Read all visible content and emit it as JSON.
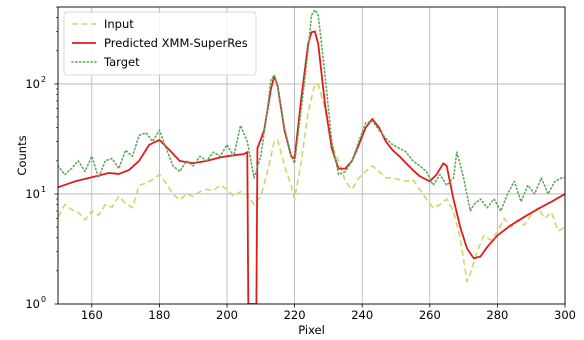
{
  "chart_data": {
    "type": "line",
    "xlabel": "Pixel",
    "ylabel": "Counts",
    "xlim": [
      150,
      300
    ],
    "ylim": [
      1,
      500
    ],
    "yscale": "log",
    "grid": true,
    "legend_position": "top-left",
    "x_ticks": [
      160,
      180,
      200,
      220,
      240,
      260,
      280,
      300
    ],
    "y_ticks": [
      {
        "value": 1,
        "label": "10",
        "exp": "0"
      },
      {
        "value": 10,
        "label": "10",
        "exp": "1"
      },
      {
        "value": 100,
        "label": "10",
        "exp": "2"
      }
    ],
    "series": [
      {
        "name": "Input",
        "color": "#d6d26a",
        "style": "dashed",
        "points": [
          [
            150,
            6.2
          ],
          [
            152,
            8
          ],
          [
            154,
            7.2
          ],
          [
            156,
            6.8
          ],
          [
            158,
            5.8
          ],
          [
            160,
            7
          ],
          [
            162,
            6.4
          ],
          [
            164,
            8
          ],
          [
            166,
            7.6
          ],
          [
            168,
            9.5
          ],
          [
            170,
            8.2
          ],
          [
            172,
            7.5
          ],
          [
            174,
            12
          ],
          [
            176,
            12.5
          ],
          [
            178,
            13.5
          ],
          [
            180,
            15
          ],
          [
            182,
            12.5
          ],
          [
            184,
            10
          ],
          [
            186,
            8.8
          ],
          [
            188,
            10
          ],
          [
            190,
            9.5
          ],
          [
            192,
            10.5
          ],
          [
            194,
            11
          ],
          [
            196,
            10.8
          ],
          [
            198,
            12
          ],
          [
            200,
            11
          ],
          [
            202,
            9.5
          ],
          [
            204,
            10.5
          ],
          [
            206,
            9.8
          ],
          [
            208,
            8
          ],
          [
            210,
            9.5
          ],
          [
            212,
            16
          ],
          [
            214,
            30
          ],
          [
            215,
            31
          ],
          [
            217,
            18
          ],
          [
            219,
            12
          ],
          [
            220,
            9
          ],
          [
            222,
            20
          ],
          [
            224,
            55
          ],
          [
            226,
            100
          ],
          [
            227,
            98
          ],
          [
            229,
            60
          ],
          [
            231,
            28
          ],
          [
            233,
            20
          ],
          [
            235,
            13
          ],
          [
            237,
            11
          ],
          [
            239,
            14
          ],
          [
            241,
            16
          ],
          [
            243,
            18
          ],
          [
            245,
            16
          ],
          [
            247,
            14
          ],
          [
            249,
            14
          ],
          [
            251,
            13.5
          ],
          [
            253,
            13
          ],
          [
            255,
            13.5
          ],
          [
            257,
            11
          ],
          [
            259,
            9
          ],
          [
            261,
            7.5
          ],
          [
            263,
            8
          ],
          [
            265,
            9
          ],
          [
            267,
            7
          ],
          [
            269,
            4
          ],
          [
            271,
            1.6
          ],
          [
            272,
            1.9
          ],
          [
            274,
            3
          ],
          [
            276,
            4.2
          ],
          [
            278,
            3.8
          ],
          [
            280,
            4.5
          ],
          [
            282,
            6
          ],
          [
            284,
            5
          ],
          [
            286,
            5.8
          ],
          [
            288,
            5.2
          ],
          [
            290,
            6.5
          ],
          [
            292,
            7.5
          ],
          [
            294,
            6
          ],
          [
            296,
            6.8
          ],
          [
            298,
            4.6
          ],
          [
            300,
            5
          ]
        ]
      },
      {
        "name": "Predicted XMM-SuperRes",
        "color": "#e01b1b",
        "style": "solid",
        "points": [
          [
            150,
            11.5
          ],
          [
            155,
            13
          ],
          [
            160,
            14.2
          ],
          [
            165,
            15.5
          ],
          [
            168,
            15.2
          ],
          [
            171,
            16.5
          ],
          [
            174,
            20
          ],
          [
            177,
            28
          ],
          [
            180,
            31
          ],
          [
            183,
            25
          ],
          [
            186,
            20
          ],
          [
            190,
            19
          ],
          [
            194,
            20
          ],
          [
            198,
            21.5
          ],
          [
            202,
            22.5
          ],
          [
            205,
            23
          ],
          [
            206,
            24
          ],
          [
            206.3,
            1
          ],
          [
            208.7,
            1
          ],
          [
            209,
            26
          ],
          [
            211,
            38
          ],
          [
            213,
            90
          ],
          [
            214,
            118
          ],
          [
            215,
            95
          ],
          [
            217,
            38
          ],
          [
            219,
            22
          ],
          [
            220,
            21
          ],
          [
            222,
            75
          ],
          [
            224,
            230
          ],
          [
            225,
            295
          ],
          [
            226,
            300
          ],
          [
            227,
            230
          ],
          [
            229,
            65
          ],
          [
            231,
            26
          ],
          [
            233,
            17
          ],
          [
            235,
            17
          ],
          [
            237,
            20
          ],
          [
            239,
            28
          ],
          [
            241,
            40
          ],
          [
            243,
            48
          ],
          [
            245,
            40
          ],
          [
            247,
            30
          ],
          [
            249,
            25
          ],
          [
            251,
            22
          ],
          [
            253,
            19
          ],
          [
            255,
            16.5
          ],
          [
            257,
            14.5
          ],
          [
            259,
            13.5
          ],
          [
            260,
            13
          ],
          [
            262,
            15
          ],
          [
            264,
            19
          ],
          [
            265,
            18
          ],
          [
            267,
            9
          ],
          [
            269,
            5
          ],
          [
            271,
            3.2
          ],
          [
            273,
            2.6
          ],
          [
            275,
            2.7
          ],
          [
            277,
            3.3
          ],
          [
            280,
            4.2
          ],
          [
            284,
            5.2
          ],
          [
            288,
            6.2
          ],
          [
            292,
            7.3
          ],
          [
            296,
            8.5
          ],
          [
            300,
            10
          ]
        ]
      },
      {
        "name": "Target",
        "color": "#5aa85a",
        "style": "dotted",
        "points": [
          [
            150,
            18
          ],
          [
            152,
            15
          ],
          [
            154,
            17
          ],
          [
            156,
            20
          ],
          [
            158,
            16
          ],
          [
            160,
            22
          ],
          [
            162,
            14
          ],
          [
            164,
            20
          ],
          [
            166,
            21
          ],
          [
            168,
            17
          ],
          [
            170,
            25
          ],
          [
            172,
            22
          ],
          [
            174,
            34
          ],
          [
            176,
            36
          ],
          [
            178,
            30
          ],
          [
            180,
            38
          ],
          [
            182,
            26
          ],
          [
            184,
            18
          ],
          [
            186,
            16
          ],
          [
            188,
            20
          ],
          [
            190,
            18
          ],
          [
            192,
            22
          ],
          [
            194,
            20
          ],
          [
            196,
            24
          ],
          [
            198,
            22
          ],
          [
            200,
            28
          ],
          [
            202,
            22
          ],
          [
            204,
            42
          ],
          [
            206,
            30
          ],
          [
            208,
            14
          ],
          [
            210,
            22
          ],
          [
            212,
            60
          ],
          [
            213,
            110
          ],
          [
            214,
            120
          ],
          [
            215,
            95
          ],
          [
            217,
            40
          ],
          [
            219,
            22
          ],
          [
            220,
            19
          ],
          [
            222,
            60
          ],
          [
            224,
            200
          ],
          [
            225,
            420
          ],
          [
            226,
            470
          ],
          [
            227,
            420
          ],
          [
            229,
            120
          ],
          [
            231,
            30
          ],
          [
            233,
            15
          ],
          [
            235,
            16
          ],
          [
            237,
            20
          ],
          [
            239,
            30
          ],
          [
            241,
            44
          ],
          [
            243,
            46
          ],
          [
            245,
            38
          ],
          [
            247,
            32
          ],
          [
            249,
            28
          ],
          [
            251,
            26
          ],
          [
            253,
            24
          ],
          [
            255,
            20
          ],
          [
            257,
            18
          ],
          [
            259,
            16
          ],
          [
            261,
            12
          ],
          [
            263,
            15
          ],
          [
            265,
            12
          ],
          [
            267,
            14
          ],
          [
            268,
            24
          ],
          [
            270,
            14
          ],
          [
            272,
            7
          ],
          [
            273,
            8
          ],
          [
            275,
            9
          ],
          [
            277,
            7.5
          ],
          [
            279,
            9
          ],
          [
            281,
            7
          ],
          [
            283,
            10
          ],
          [
            285,
            13
          ],
          [
            287,
            8.5
          ],
          [
            289,
            12
          ],
          [
            291,
            10
          ],
          [
            293,
            14
          ],
          [
            295,
            10
          ],
          [
            297,
            13
          ],
          [
            299,
            14
          ],
          [
            300,
            14
          ]
        ]
      }
    ]
  }
}
